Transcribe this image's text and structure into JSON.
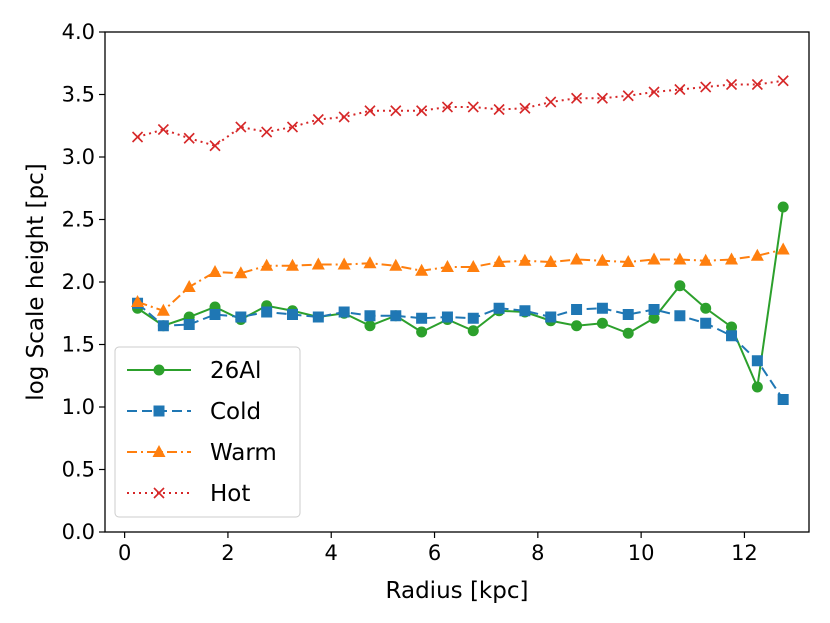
{
  "chart_data": {
    "type": "line",
    "title": "",
    "xlabel": "Radius [kpc]",
    "ylabel": "log Scale height [pc]",
    "xlim": [
      -0.38,
      13.25
    ],
    "ylim": [
      0.0,
      4.0
    ],
    "xticks": [
      0,
      2,
      4,
      6,
      8,
      10,
      12
    ],
    "xtick_labels": [
      "0",
      "2",
      "4",
      "6",
      "8",
      "10",
      "12"
    ],
    "yticks": [
      0.0,
      0.5,
      1.0,
      1.5,
      2.0,
      2.5,
      3.0,
      3.5,
      4.0
    ],
    "ytick_labels": [
      "0.0",
      "0.5",
      "1.0",
      "1.5",
      "2.0",
      "2.5",
      "3.0",
      "3.5",
      "4.0"
    ],
    "grid": false,
    "legend_position": "lower-left",
    "x": [
      0.25,
      0.75,
      1.25,
      1.75,
      2.25,
      2.75,
      3.25,
      3.75,
      4.25,
      4.75,
      5.25,
      5.75,
      6.25,
      6.75,
      7.25,
      7.75,
      8.25,
      8.75,
      9.25,
      9.75,
      10.25,
      10.75,
      11.25,
      11.75,
      12.25,
      12.75
    ],
    "series": [
      {
        "name": "26Al",
        "color": "#2ca02c",
        "linestyle": "solid",
        "marker": "circle",
        "values": [
          1.79,
          1.65,
          1.72,
          1.8,
          1.7,
          1.81,
          1.77,
          1.72,
          1.75,
          1.65,
          1.73,
          1.6,
          1.7,
          1.61,
          1.77,
          1.76,
          1.69,
          1.65,
          1.67,
          1.59,
          1.71,
          1.97,
          1.79,
          1.64,
          1.16,
          2.6
        ]
      },
      {
        "name": "Cold",
        "color": "#1f77b4",
        "linestyle": "dashed",
        "marker": "square",
        "values": [
          1.83,
          1.65,
          1.66,
          1.74,
          1.72,
          1.76,
          1.74,
          1.72,
          1.76,
          1.73,
          1.73,
          1.71,
          1.72,
          1.71,
          1.79,
          1.77,
          1.72,
          1.78,
          1.79,
          1.74,
          1.78,
          1.73,
          1.67,
          1.57,
          1.37,
          1.06
        ]
      },
      {
        "name": "Warm",
        "color": "#ff7f0e",
        "linestyle": "dashdot",
        "marker": "triangle",
        "values": [
          1.84,
          1.77,
          1.96,
          2.08,
          2.07,
          2.13,
          2.13,
          2.14,
          2.14,
          2.15,
          2.13,
          2.09,
          2.12,
          2.12,
          2.16,
          2.17,
          2.16,
          2.18,
          2.17,
          2.16,
          2.18,
          2.18,
          2.17,
          2.18,
          2.21,
          2.26
        ]
      },
      {
        "name": "Hot",
        "color": "#d62728",
        "linestyle": "dotted",
        "marker": "x",
        "values": [
          3.16,
          3.22,
          3.15,
          3.09,
          3.24,
          3.2,
          3.24,
          3.3,
          3.32,
          3.37,
          3.37,
          3.37,
          3.4,
          3.4,
          3.38,
          3.39,
          3.44,
          3.47,
          3.47,
          3.49,
          3.52,
          3.54,
          3.56,
          3.58,
          3.58,
          3.61
        ]
      }
    ]
  }
}
